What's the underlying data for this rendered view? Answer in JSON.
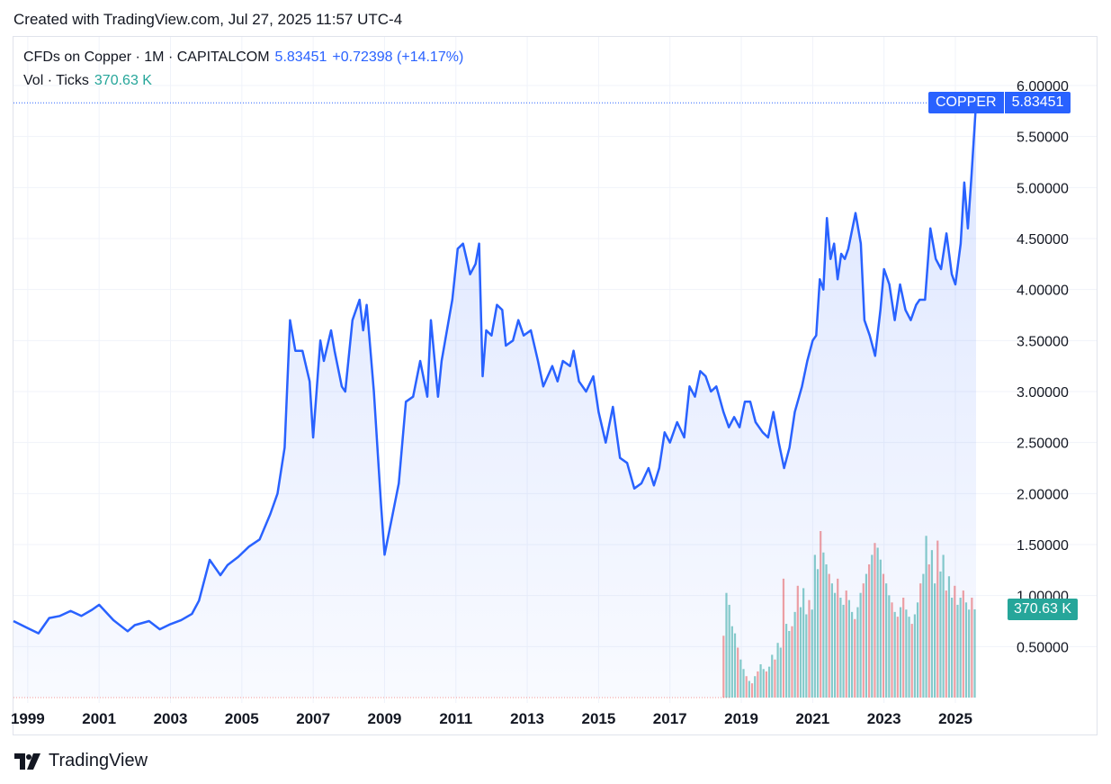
{
  "header": {
    "created": "Created with TradingView.com, Jul 27, 2025 11:57 UTC-4"
  },
  "legend": {
    "symbol": "CFDs on Copper · 1M · CAPITALCOM",
    "price": "5.83451",
    "change": "+0.72398 (+14.17%)",
    "vol_label": "Vol · Ticks",
    "vol_value": "370.63 K"
  },
  "price_tag": {
    "name": "COPPER",
    "value": "5.83451"
  },
  "volume_tag": {
    "value": "370.63 K"
  },
  "footer": {
    "brand": "TradingView"
  },
  "colors": {
    "line": "#2962ff",
    "vol_up": "#26a69a",
    "vol_down": "#ef5350"
  },
  "chart_data": {
    "type": "area",
    "title": "CFDs on Copper · 1M · CAPITALCOM",
    "ylim": [
      0.0,
      6.0
    ],
    "xlim": [
      1998.6,
      2025.58
    ],
    "y_ticks": [
      "6.00000",
      "5.50000",
      "5.00000",
      "4.50000",
      "4.00000",
      "3.50000",
      "3.00000",
      "2.50000",
      "2.00000",
      "1.50000",
      "1.00000",
      "0.50000"
    ],
    "y_tick_values": [
      6.0,
      5.5,
      5.0,
      4.5,
      4.0,
      3.5,
      3.0,
      2.5,
      2.0,
      1.5,
      1.0,
      0.5
    ],
    "x_ticks": [
      "1999",
      "2001",
      "2003",
      "2005",
      "2007",
      "2009",
      "2011",
      "2013",
      "2015",
      "2017",
      "2019",
      "2021",
      "2023",
      "2025"
    ],
    "x_tick_values": [
      1999,
      2001,
      2003,
      2005,
      2007,
      2009,
      2011,
      2013,
      2015,
      2017,
      2019,
      2021,
      2023,
      2025
    ],
    "series": [
      {
        "name": "Copper",
        "points": [
          [
            1998.6,
            0.75
          ],
          [
            1999.0,
            0.68
          ],
          [
            1999.3,
            0.63
          ],
          [
            1999.6,
            0.78
          ],
          [
            1999.9,
            0.8
          ],
          [
            2000.2,
            0.85
          ],
          [
            2000.5,
            0.8
          ],
          [
            2000.8,
            0.86
          ],
          [
            2001.0,
            0.91
          ],
          [
            2001.4,
            0.76
          ],
          [
            2001.8,
            0.65
          ],
          [
            2002.0,
            0.71
          ],
          [
            2002.4,
            0.75
          ],
          [
            2002.7,
            0.67
          ],
          [
            2003.0,
            0.72
          ],
          [
            2003.3,
            0.76
          ],
          [
            2003.6,
            0.82
          ],
          [
            2003.8,
            0.95
          ],
          [
            2004.1,
            1.35
          ],
          [
            2004.4,
            1.2
          ],
          [
            2004.6,
            1.3
          ],
          [
            2004.9,
            1.38
          ],
          [
            2005.2,
            1.48
          ],
          [
            2005.5,
            1.55
          ],
          [
            2005.8,
            1.8
          ],
          [
            2006.0,
            2.0
          ],
          [
            2006.2,
            2.45
          ],
          [
            2006.35,
            3.7
          ],
          [
            2006.5,
            3.4
          ],
          [
            2006.7,
            3.4
          ],
          [
            2006.9,
            3.1
          ],
          [
            2007.0,
            2.55
          ],
          [
            2007.2,
            3.5
          ],
          [
            2007.3,
            3.3
          ],
          [
            2007.5,
            3.6
          ],
          [
            2007.6,
            3.4
          ],
          [
            2007.8,
            3.05
          ],
          [
            2007.9,
            3.0
          ],
          [
            2008.1,
            3.7
          ],
          [
            2008.3,
            3.9
          ],
          [
            2008.4,
            3.6
          ],
          [
            2008.5,
            3.85
          ],
          [
            2008.7,
            3.0
          ],
          [
            2008.9,
            1.9
          ],
          [
            2009.0,
            1.4
          ],
          [
            2009.2,
            1.75
          ],
          [
            2009.4,
            2.1
          ],
          [
            2009.6,
            2.9
          ],
          [
            2009.8,
            2.95
          ],
          [
            2010.0,
            3.3
          ],
          [
            2010.2,
            2.95
          ],
          [
            2010.3,
            3.7
          ],
          [
            2010.5,
            2.95
          ],
          [
            2010.6,
            3.3
          ],
          [
            2010.8,
            3.7
          ],
          [
            2010.9,
            3.9
          ],
          [
            2011.05,
            4.4
          ],
          [
            2011.2,
            4.45
          ],
          [
            2011.4,
            4.15
          ],
          [
            2011.55,
            4.25
          ],
          [
            2011.65,
            4.45
          ],
          [
            2011.75,
            3.15
          ],
          [
            2011.85,
            3.6
          ],
          [
            2012.0,
            3.55
          ],
          [
            2012.15,
            3.85
          ],
          [
            2012.3,
            3.8
          ],
          [
            2012.4,
            3.45
          ],
          [
            2012.6,
            3.5
          ],
          [
            2012.75,
            3.7
          ],
          [
            2012.9,
            3.55
          ],
          [
            2013.1,
            3.6
          ],
          [
            2013.3,
            3.3
          ],
          [
            2013.45,
            3.05
          ],
          [
            2013.7,
            3.25
          ],
          [
            2013.85,
            3.1
          ],
          [
            2014.0,
            3.3
          ],
          [
            2014.2,
            3.25
          ],
          [
            2014.3,
            3.4
          ],
          [
            2014.45,
            3.1
          ],
          [
            2014.65,
            3.0
          ],
          [
            2014.85,
            3.15
          ],
          [
            2015.0,
            2.8
          ],
          [
            2015.2,
            2.5
          ],
          [
            2015.4,
            2.85
          ],
          [
            2015.6,
            2.35
          ],
          [
            2015.8,
            2.3
          ],
          [
            2016.0,
            2.05
          ],
          [
            2016.2,
            2.1
          ],
          [
            2016.4,
            2.25
          ],
          [
            2016.55,
            2.08
          ],
          [
            2016.7,
            2.25
          ],
          [
            2016.85,
            2.6
          ],
          [
            2017.0,
            2.5
          ],
          [
            2017.2,
            2.7
          ],
          [
            2017.4,
            2.55
          ],
          [
            2017.55,
            3.05
          ],
          [
            2017.7,
            2.95
          ],
          [
            2017.85,
            3.2
          ],
          [
            2018.0,
            3.15
          ],
          [
            2018.15,
            3.0
          ],
          [
            2018.3,
            3.05
          ],
          [
            2018.5,
            2.8
          ],
          [
            2018.65,
            2.65
          ],
          [
            2018.8,
            2.75
          ],
          [
            2018.95,
            2.65
          ],
          [
            2019.1,
            2.9
          ],
          [
            2019.25,
            2.9
          ],
          [
            2019.4,
            2.7
          ],
          [
            2019.6,
            2.6
          ],
          [
            2019.75,
            2.55
          ],
          [
            2019.9,
            2.8
          ],
          [
            2020.05,
            2.5
          ],
          [
            2020.2,
            2.25
          ],
          [
            2020.35,
            2.45
          ],
          [
            2020.5,
            2.8
          ],
          [
            2020.7,
            3.05
          ],
          [
            2020.85,
            3.3
          ],
          [
            2021.0,
            3.5
          ],
          [
            2021.1,
            3.55
          ],
          [
            2021.2,
            4.1
          ],
          [
            2021.3,
            4.0
          ],
          [
            2021.4,
            4.7
          ],
          [
            2021.5,
            4.3
          ],
          [
            2021.6,
            4.45
          ],
          [
            2021.7,
            4.1
          ],
          [
            2021.8,
            4.35
          ],
          [
            2021.9,
            4.3
          ],
          [
            2022.0,
            4.4
          ],
          [
            2022.2,
            4.75
          ],
          [
            2022.35,
            4.45
          ],
          [
            2022.45,
            3.7
          ],
          [
            2022.6,
            3.55
          ],
          [
            2022.75,
            3.35
          ],
          [
            2022.9,
            3.8
          ],
          [
            2023.0,
            4.2
          ],
          [
            2023.15,
            4.05
          ],
          [
            2023.3,
            3.7
          ],
          [
            2023.45,
            4.05
          ],
          [
            2023.6,
            3.8
          ],
          [
            2023.75,
            3.7
          ],
          [
            2023.9,
            3.85
          ],
          [
            2024.0,
            3.9
          ],
          [
            2024.15,
            3.9
          ],
          [
            2024.3,
            4.6
          ],
          [
            2024.45,
            4.3
          ],
          [
            2024.6,
            4.2
          ],
          [
            2024.75,
            4.55
          ],
          [
            2024.9,
            4.15
          ],
          [
            2025.0,
            4.05
          ],
          [
            2025.15,
            4.45
          ],
          [
            2025.25,
            5.05
          ],
          [
            2025.35,
            4.6
          ],
          [
            2025.45,
            5.1
          ],
          [
            2025.58,
            5.83
          ]
        ]
      }
    ],
    "volume": {
      "unit": "K ticks",
      "last": 370.63,
      "bars": [
        [
          2018.5,
          260,
          "down"
        ],
        [
          2018.58,
          440,
          "up"
        ],
        [
          2018.66,
          390,
          "up"
        ],
        [
          2018.74,
          300,
          "up"
        ],
        [
          2018.82,
          270,
          "up"
        ],
        [
          2018.9,
          210,
          "down"
        ],
        [
          2018.98,
          160,
          "up"
        ],
        [
          2019.06,
          120,
          "up"
        ],
        [
          2019.14,
          90,
          "down"
        ],
        [
          2019.22,
          70,
          "up"
        ],
        [
          2019.3,
          60,
          "down"
        ],
        [
          2019.38,
          90,
          "up"
        ],
        [
          2019.46,
          110,
          "down"
        ],
        [
          2019.54,
          140,
          "up"
        ],
        [
          2019.62,
          120,
          "up"
        ],
        [
          2019.7,
          110,
          "down"
        ],
        [
          2019.78,
          130,
          "up"
        ],
        [
          2019.86,
          180,
          "up"
        ],
        [
          2019.94,
          160,
          "down"
        ],
        [
          2020.02,
          230,
          "up"
        ],
        [
          2020.1,
          210,
          "up"
        ],
        [
          2020.18,
          500,
          "down"
        ],
        [
          2020.26,
          310,
          "up"
        ],
        [
          2020.34,
          280,
          "up"
        ],
        [
          2020.42,
          300,
          "down"
        ],
        [
          2020.5,
          360,
          "up"
        ],
        [
          2020.58,
          470,
          "down"
        ],
        [
          2020.66,
          380,
          "up"
        ],
        [
          2020.74,
          460,
          "up"
        ],
        [
          2020.82,
          350,
          "up"
        ],
        [
          2020.9,
          410,
          "down"
        ],
        [
          2020.98,
          370,
          "up"
        ],
        [
          2021.06,
          600,
          "up"
        ],
        [
          2021.14,
          540,
          "up"
        ],
        [
          2021.22,
          700,
          "down"
        ],
        [
          2021.3,
          610,
          "up"
        ],
        [
          2021.38,
          560,
          "up"
        ],
        [
          2021.46,
          520,
          "down"
        ],
        [
          2021.54,
          480,
          "up"
        ],
        [
          2021.62,
          440,
          "up"
        ],
        [
          2021.7,
          500,
          "down"
        ],
        [
          2021.78,
          420,
          "up"
        ],
        [
          2021.86,
          390,
          "up"
        ],
        [
          2021.94,
          450,
          "down"
        ],
        [
          2022.02,
          410,
          "up"
        ],
        [
          2022.1,
          360,
          "up"
        ],
        [
          2022.18,
          330,
          "down"
        ],
        [
          2022.26,
          380,
          "up"
        ],
        [
          2022.34,
          440,
          "up"
        ],
        [
          2022.42,
          480,
          "down"
        ],
        [
          2022.5,
          520,
          "up"
        ],
        [
          2022.58,
          560,
          "down"
        ],
        [
          2022.66,
          600,
          "up"
        ],
        [
          2022.74,
          650,
          "down"
        ],
        [
          2022.82,
          630,
          "up"
        ],
        [
          2022.9,
          580,
          "up"
        ],
        [
          2022.98,
          520,
          "down"
        ],
        [
          2023.06,
          480,
          "up"
        ],
        [
          2023.14,
          430,
          "up"
        ],
        [
          2023.22,
          400,
          "down"
        ],
        [
          2023.3,
          360,
          "up"
        ],
        [
          2023.38,
          340,
          "down"
        ],
        [
          2023.46,
          380,
          "up"
        ],
        [
          2023.54,
          420,
          "down"
        ],
        [
          2023.62,
          370,
          "up"
        ],
        [
          2023.7,
          340,
          "up"
        ],
        [
          2023.78,
          310,
          "down"
        ],
        [
          2023.86,
          350,
          "up"
        ],
        [
          2023.94,
          400,
          "up"
        ],
        [
          2024.02,
          480,
          "down"
        ],
        [
          2024.1,
          520,
          "up"
        ],
        [
          2024.18,
          680,
          "up"
        ],
        [
          2024.26,
          560,
          "down"
        ],
        [
          2024.34,
          620,
          "up"
        ],
        [
          2024.42,
          480,
          "up"
        ],
        [
          2024.5,
          660,
          "down"
        ],
        [
          2024.58,
          530,
          "up"
        ],
        [
          2024.66,
          600,
          "up"
        ],
        [
          2024.74,
          450,
          "down"
        ],
        [
          2024.82,
          510,
          "up"
        ],
        [
          2024.9,
          420,
          "up"
        ],
        [
          2024.98,
          470,
          "down"
        ],
        [
          2025.06,
          390,
          "up"
        ],
        [
          2025.14,
          420,
          "up"
        ],
        [
          2025.22,
          450,
          "down"
        ],
        [
          2025.3,
          400,
          "up"
        ],
        [
          2025.38,
          370,
          "up"
        ],
        [
          2025.46,
          420,
          "down"
        ],
        [
          2025.54,
          371,
          "up"
        ]
      ]
    }
  }
}
